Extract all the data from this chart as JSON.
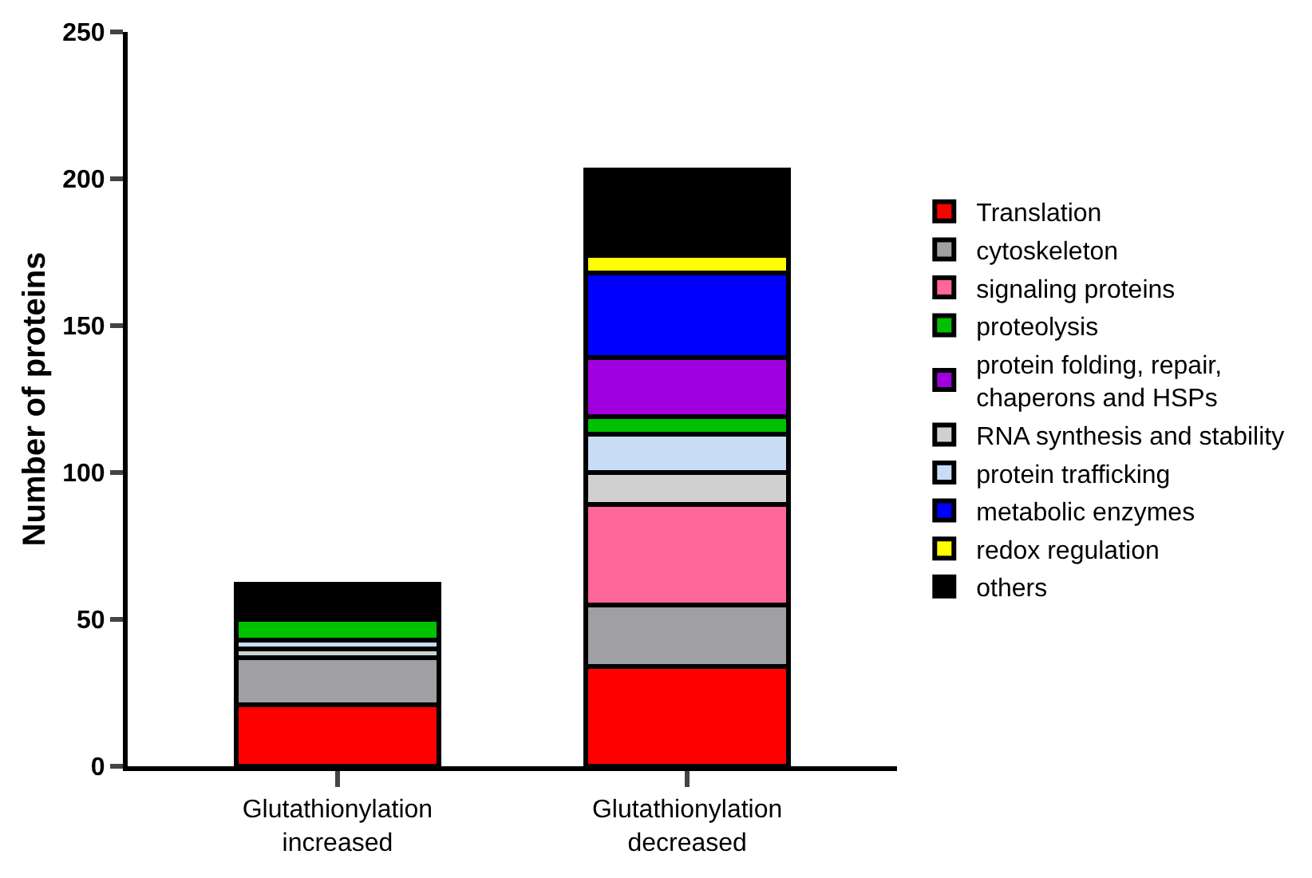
{
  "chart_data": {
    "type": "bar",
    "stacked": true,
    "ylabel": "Number of proteins",
    "categories": [
      "Glutathionylation\nincreased",
      "Glutathionylation\ndecreased"
    ],
    "ylim": [
      0,
      250
    ],
    "yticks": [
      0,
      50,
      100,
      150,
      200,
      250
    ],
    "grid": false,
    "legend": "right",
    "series": [
      {
        "name": "Translation",
        "color": "#ff0000",
        "values": [
          21,
          34
        ]
      },
      {
        "name": "cytoskeleton",
        "color": "#a0a0a4",
        "values": [
          16,
          21
        ]
      },
      {
        "name": "signaling proteins",
        "color": "#ff6699",
        "values": [
          0,
          34
        ]
      },
      {
        "name": "proteolysis",
        "color": "#00c000",
        "values": [
          7,
          6
        ]
      },
      {
        "name": "protein folding, repair,\nchaperons and HSPs",
        "color": "#a000e0",
        "values": [
          0,
          20
        ]
      },
      {
        "name": "RNA synthesis and stability",
        "color": "#d0d0d0",
        "values": [
          3,
          11
        ]
      },
      {
        "name": "protein trafficking",
        "color": "#c8dcf5",
        "values": [
          3,
          13
        ]
      },
      {
        "name": "metabolic enzymes",
        "color": "#0000ff",
        "values": [
          0,
          29
        ]
      },
      {
        "name": "redox regulation",
        "color": "#ffff00",
        "values": [
          0,
          6
        ]
      },
      {
        "name": "others",
        "color": "#000000",
        "values": [
          12,
          29
        ]
      }
    ]
  }
}
